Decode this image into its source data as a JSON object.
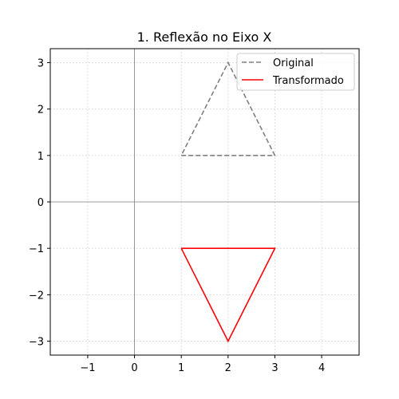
{
  "chart_data": {
    "type": "line",
    "title": "1. Reflexão no Eixo X",
    "xlabel": "",
    "ylabel": "",
    "xlim": [
      -1.8,
      4.8
    ],
    "ylim": [
      -3.3,
      3.3
    ],
    "xticks": [
      -1,
      0,
      1,
      2,
      3,
      4
    ],
    "yticks": [
      -3,
      -2,
      -1,
      0,
      1,
      2,
      3
    ],
    "xtick_labels": [
      "−1",
      "0",
      "1",
      "2",
      "3",
      "4"
    ],
    "ytick_labels": [
      "−3",
      "−2",
      "−1",
      "0",
      "1",
      "2",
      "3"
    ],
    "grid": true,
    "axis_lines": {
      "x": 0,
      "y": 0
    },
    "legend_position": "top-right",
    "series": [
      {
        "name": "Original",
        "color": "#808080",
        "style": "dashed",
        "x": [
          1,
          3,
          2,
          1
        ],
        "y": [
          1,
          1,
          3,
          1
        ]
      },
      {
        "name": "Transformado",
        "color": "#ff0000",
        "style": "solid",
        "x": [
          1,
          3,
          2,
          1
        ],
        "y": [
          -1,
          -1,
          -3,
          -1
        ]
      }
    ]
  }
}
